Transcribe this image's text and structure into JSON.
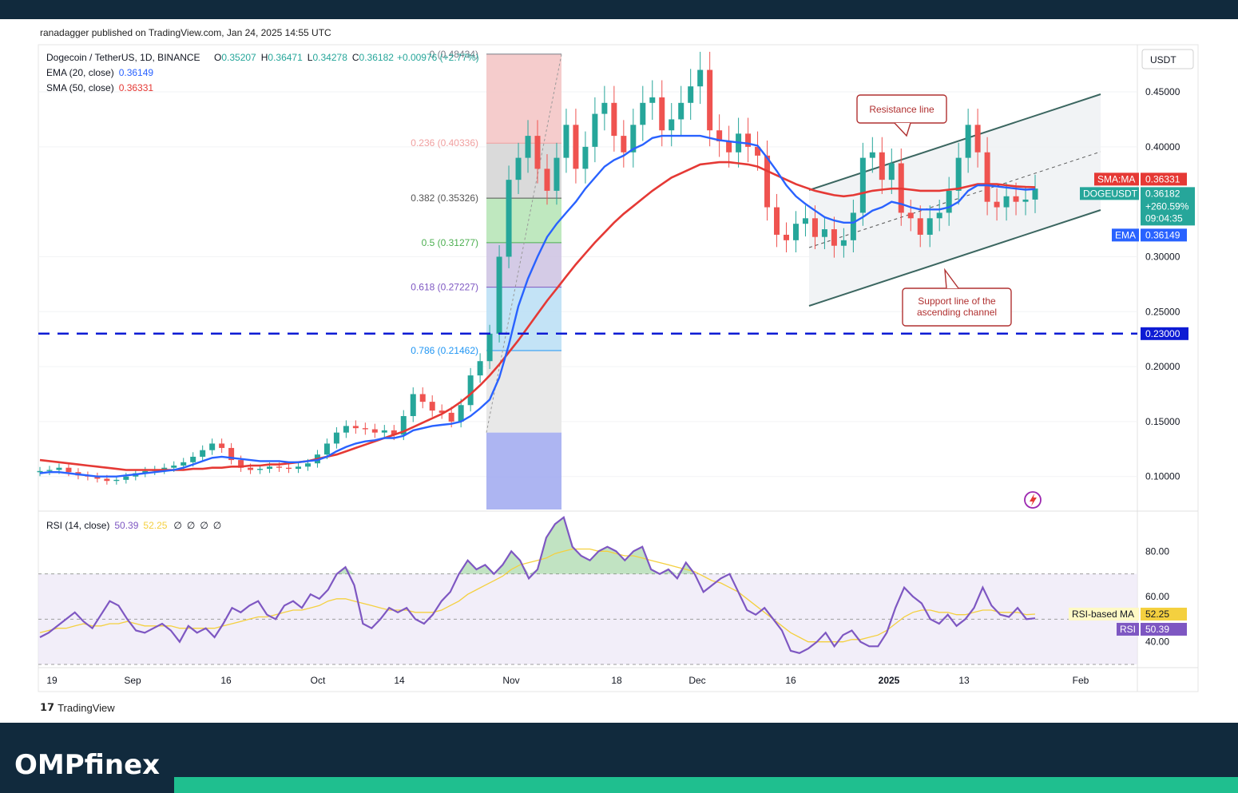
{
  "header": {
    "published": "ranadagger published on TradingView.com, Jan 24, 2025 14:55 UTC"
  },
  "chart_data": {
    "type": "candlestick",
    "symbol": "Dogecoin / TetherUS, 1D, BINANCE",
    "ohlc": {
      "o_label": "O",
      "o": "0.35207",
      "h_label": "H",
      "h": "0.36471",
      "l_label": "L",
      "l": "0.34278",
      "c_label": "C",
      "c": "0.36182",
      "change": "+0.00976 (+2.77%)"
    },
    "indicators": [
      {
        "label": "EMA (20, close)",
        "value": "0.36149",
        "color": "#2962ff"
      },
      {
        "label": "SMA (50, close)",
        "value": "0.36331",
        "color": "#e53935"
      }
    ],
    "currency": "USDT",
    "ylim": [
      0.07,
      0.49
    ],
    "y_ticks": [
      "0.45000",
      "0.40000",
      "0.30000",
      "0.25000",
      "0.20000",
      "0.15000",
      "0.10000"
    ],
    "y_tick_values": [
      0.45,
      0.4,
      0.3,
      0.25,
      0.2,
      0.15,
      0.1
    ],
    "x_ticks": [
      "19",
      "Sep",
      "16",
      "Oct",
      "14",
      "Nov",
      "18",
      "Dec",
      "16",
      "2025",
      "13",
      "Feb"
    ],
    "fib_levels": [
      {
        "label": "0 (0.48434)",
        "value": 0.48434,
        "color": "#787b86"
      },
      {
        "label": "0.236 (0.40336)",
        "value": 0.40336,
        "color": "#f0a0a0"
      },
      {
        "label": "0.382 (0.35326)",
        "value": 0.35326,
        "color": "#555555"
      },
      {
        "label": "0.5 (0.31277)",
        "value": 0.31277,
        "color": "#4caf50"
      },
      {
        "label": "0.618 (0.27227)",
        "value": 0.27227,
        "color": "#7e57c2"
      },
      {
        "label": "0.786 (0.21462)",
        "value": 0.21462,
        "color": "#2196f3"
      }
    ],
    "horizontal_line": {
      "value": 0.23,
      "label": "0.23000",
      "color": "#0d1bd4"
    },
    "annotations": [
      {
        "text": "Resistance line"
      },
      {
        "text_lines": [
          "Support line of the",
          "ascending channel"
        ]
      }
    ],
    "badges": [
      {
        "name": "SMA:MA",
        "value": "0.36331",
        "color": "#e53935"
      },
      {
        "name": "DOGEUSDT",
        "value": "0.36182",
        "extra": [
          "+260.59%",
          "09:04:35"
        ],
        "color": "#26a69a"
      },
      {
        "name": "EMA",
        "value": "0.36149",
        "color": "#2962ff"
      }
    ],
    "closes": [
      0.105,
      0.106,
      0.108,
      0.104,
      0.101,
      0.1,
      0.098,
      0.096,
      0.097,
      0.1,
      0.103,
      0.105,
      0.106,
      0.108,
      0.11,
      0.113,
      0.118,
      0.124,
      0.13,
      0.126,
      0.115,
      0.108,
      0.106,
      0.107,
      0.109,
      0.108,
      0.107,
      0.109,
      0.112,
      0.12,
      0.13,
      0.14,
      0.146,
      0.144,
      0.143,
      0.14,
      0.142,
      0.138,
      0.155,
      0.175,
      0.168,
      0.16,
      0.158,
      0.15,
      0.165,
      0.192,
      0.205,
      0.23,
      0.3,
      0.37,
      0.39,
      0.41,
      0.38,
      0.36,
      0.39,
      0.42,
      0.38,
      0.4,
      0.43,
      0.44,
      0.41,
      0.395,
      0.42,
      0.44,
      0.445,
      0.415,
      0.425,
      0.44,
      0.455,
      0.47,
      0.415,
      0.405,
      0.395,
      0.412,
      0.4,
      0.392,
      0.345,
      0.32,
      0.315,
      0.33,
      0.335,
      0.318,
      0.325,
      0.31,
      0.315,
      0.34,
      0.39,
      0.395,
      0.37,
      0.385,
      0.34,
      0.335,
      0.32,
      0.335,
      0.34,
      0.36,
      0.39,
      0.42,
      0.395,
      0.35,
      0.345,
      0.355,
      0.35,
      0.352,
      0.362
    ],
    "ema20": [
      0.103,
      0.104,
      0.104,
      0.103,
      0.102,
      0.101,
      0.1,
      0.1,
      0.1,
      0.101,
      0.102,
      0.103,
      0.104,
      0.105,
      0.106,
      0.108,
      0.111,
      0.114,
      0.117,
      0.118,
      0.117,
      0.116,
      0.115,
      0.114,
      0.114,
      0.114,
      0.113,
      0.113,
      0.114,
      0.115,
      0.118,
      0.123,
      0.127,
      0.13,
      0.132,
      0.133,
      0.135,
      0.135,
      0.137,
      0.142,
      0.144,
      0.146,
      0.147,
      0.148,
      0.15,
      0.155,
      0.162,
      0.17,
      0.19,
      0.22,
      0.255,
      0.28,
      0.3,
      0.318,
      0.33,
      0.34,
      0.35,
      0.362,
      0.372,
      0.382,
      0.388,
      0.392,
      0.398,
      0.402,
      0.408,
      0.41,
      0.41,
      0.41,
      0.41,
      0.41,
      0.408,
      0.406,
      0.405,
      0.404,
      0.403,
      0.401,
      0.39,
      0.378,
      0.365,
      0.355,
      0.348,
      0.342,
      0.336,
      0.333,
      0.331,
      0.331,
      0.336,
      0.342,
      0.345,
      0.35,
      0.348,
      0.345,
      0.343,
      0.343,
      0.343,
      0.345,
      0.35,
      0.36,
      0.365,
      0.365,
      0.364,
      0.363,
      0.362,
      0.361,
      0.3615
    ],
    "sma50": [
      0.115,
      0.114,
      0.113,
      0.112,
      0.111,
      0.11,
      0.109,
      0.108,
      0.107,
      0.106,
      0.106,
      0.106,
      0.106,
      0.106,
      0.106,
      0.106,
      0.107,
      0.107,
      0.108,
      0.108,
      0.109,
      0.109,
      0.11,
      0.11,
      0.111,
      0.111,
      0.112,
      0.113,
      0.114,
      0.116,
      0.118,
      0.12,
      0.123,
      0.126,
      0.129,
      0.132,
      0.135,
      0.138,
      0.141,
      0.145,
      0.149,
      0.153,
      0.157,
      0.162,
      0.168,
      0.175,
      0.183,
      0.192,
      0.202,
      0.213,
      0.224,
      0.236,
      0.248,
      0.26,
      0.271,
      0.282,
      0.293,
      0.303,
      0.313,
      0.322,
      0.331,
      0.339,
      0.346,
      0.353,
      0.36,
      0.366,
      0.372,
      0.376,
      0.38,
      0.384,
      0.385,
      0.386,
      0.386,
      0.385,
      0.384,
      0.382,
      0.378,
      0.374,
      0.37,
      0.366,
      0.363,
      0.36,
      0.358,
      0.356,
      0.355,
      0.356,
      0.358,
      0.36,
      0.361,
      0.362,
      0.362,
      0.361,
      0.36,
      0.36,
      0.36,
      0.361,
      0.362,
      0.364,
      0.366,
      0.366,
      0.366,
      0.365,
      0.364,
      0.3635,
      0.3633
    ],
    "rsi_panel": {
      "label": "RSI (14, close)",
      "rsi": "50.39",
      "rsi_ma": "52.25",
      "extras": [
        "∅",
        "∅",
        "∅",
        "∅"
      ],
      "y_ticks": [
        "80.00",
        "60.00",
        "40.00"
      ],
      "y_tick_values": [
        80,
        60,
        40
      ],
      "ylim": [
        30,
        96
      ],
      "band": [
        30,
        70
      ],
      "badge_ma_label": "RSI-based MA",
      "badge_rsi_label": "RSI",
      "values": [
        42,
        44,
        47,
        50,
        53,
        49,
        46,
        52,
        58,
        56,
        50,
        45,
        44,
        46,
        48,
        45,
        40,
        47,
        44,
        46,
        42,
        48,
        55,
        53,
        56,
        58,
        52,
        50,
        56,
        58,
        55,
        61,
        59,
        63,
        70,
        73,
        65,
        48,
        46,
        50,
        55,
        53,
        55,
        50,
        48,
        52,
        58,
        62,
        70,
        76,
        72,
        74,
        70,
        74,
        80,
        76,
        68,
        72,
        86,
        92,
        95,
        82,
        78,
        76,
        80,
        82,
        80,
        76,
        80,
        82,
        72,
        70,
        72,
        68,
        75,
        70,
        62,
        65,
        68,
        70,
        62,
        54,
        52,
        55,
        50,
        45,
        36,
        35,
        37,
        40,
        44,
        38,
        43,
        45,
        40,
        38,
        38,
        44,
        55,
        64,
        60,
        57,
        50,
        48,
        52,
        47,
        50,
        55,
        64,
        56,
        52,
        51,
        55,
        50,
        50.39
      ],
      "rsi_ma_values": [
        44,
        45,
        46,
        46,
        47,
        48,
        47,
        47,
        48,
        48,
        49,
        48,
        47,
        47,
        47,
        47,
        46,
        46,
        46,
        46,
        46,
        47,
        48,
        49,
        50,
        51,
        51,
        52,
        53,
        54,
        54,
        55,
        56,
        58,
        59,
        59,
        58,
        57,
        56,
        55,
        54,
        54,
        54,
        53,
        53,
        53,
        54,
        56,
        58,
        61,
        63,
        65,
        67,
        69,
        72,
        74,
        75,
        76,
        77,
        79,
        80,
        81,
        81,
        81,
        80,
        80,
        79,
        78,
        78,
        77,
        76,
        75,
        74,
        73,
        72,
        71,
        69,
        67,
        66,
        64,
        62,
        59,
        56,
        53,
        50,
        47,
        44,
        42,
        40,
        40,
        40,
        40,
        40,
        41,
        41,
        42,
        43,
        45,
        48,
        51,
        53,
        54,
        54,
        53,
        53,
        52,
        52,
        53,
        54,
        54,
        53,
        53,
        53,
        52,
        52.25
      ]
    }
  }
}
